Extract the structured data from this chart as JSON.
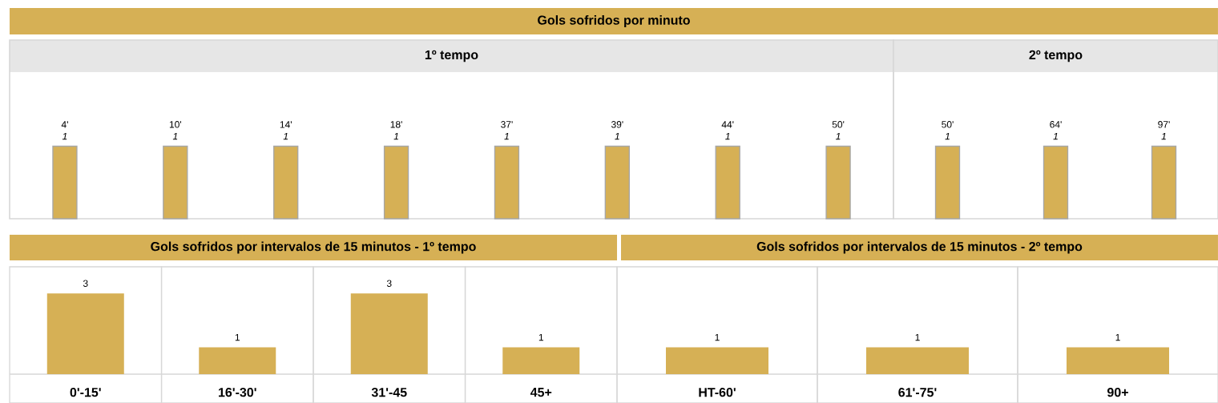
{
  "chart_data": [
    {
      "type": "bar",
      "title": "Gols sofridos por minuto",
      "subtitle": "1º tempo",
      "categories": [
        "4'",
        "10'",
        "14'",
        "18'",
        "37'",
        "39'",
        "44'",
        "50'"
      ],
      "values": [
        1,
        1,
        1,
        1,
        1,
        1,
        1,
        1
      ],
      "color": "#d6b055",
      "data_labels": true
    },
    {
      "type": "bar",
      "subtitle": "2º tempo",
      "categories": [
        "50'",
        "64'",
        "97'"
      ],
      "values": [
        1,
        1,
        1
      ],
      "color": "#d6b055",
      "data_labels": true
    },
    {
      "type": "bar",
      "title": "Gols sofridos por intervalos de 15 minutos - 1º tempo",
      "categories": [
        "0'-15'",
        "16'-30'",
        "31'-45",
        "45+"
      ],
      "values": [
        3,
        1,
        3,
        1
      ],
      "color": "#d6b055",
      "data_labels": true
    },
    {
      "type": "bar",
      "title": "Gols sofridos por intervalos de 15 minutos - 2º tempo",
      "categories": [
        "HT-60'",
        "61'-75'",
        "90+"
      ],
      "values": [
        1,
        1,
        1
      ],
      "color": "#d6b055",
      "data_labels": true
    }
  ]
}
